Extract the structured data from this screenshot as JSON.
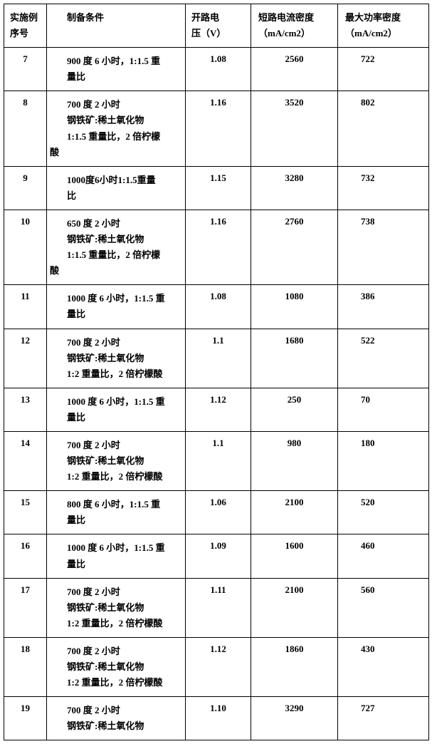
{
  "header": {
    "seq": "实施例序号",
    "cond": "制备条件",
    "volt_l1": "开路电",
    "volt_l2": "压（V）",
    "curr_l1": "短路电流密度",
    "curr_l2": "（mA/cm2）",
    "pow_l1": "最大功率密度",
    "pow_l2": "（mA/cm2）"
  },
  "rows": [
    {
      "seq": "7",
      "cond": [
        "900 度 6 小时，1:1.5 重",
        "量比"
      ],
      "volt": "1.08",
      "curr": "2560",
      "pow": "722"
    },
    {
      "seq": "8",
      "cond": [
        "700 度 2 小时",
        "钢铁矿:稀土氧化物",
        "1:1.5 重量比，2 倍柠檬",
        "酸"
      ],
      "condFlushLast": true,
      "volt": "1.16",
      "curr": "3520",
      "pow": "802"
    },
    {
      "seq": "9",
      "cond": [
        "1000度6小时1:1.5重量",
        "比"
      ],
      "volt": "1.15",
      "curr": "3280",
      "pow": "732"
    },
    {
      "seq": "10",
      "cond": [
        "650 度 2 小时",
        "钢铁矿:稀土氧化物",
        "1:1.5 重量比，2 倍柠檬",
        "酸"
      ],
      "condFlushLast": true,
      "volt": "1.16",
      "curr": "2760",
      "pow": "738"
    },
    {
      "seq": "11",
      "cond": [
        "1000 度 6 小时，1:1.5 重",
        "量比"
      ],
      "volt": "1.08",
      "curr": "1080",
      "pow": "386"
    },
    {
      "seq": "12",
      "cond": [
        "700 度 2 小时",
        "钢铁矿:稀土氧化物",
        "1:2 重量比，2 倍柠檬酸"
      ],
      "volt": "1.1",
      "curr": "1680",
      "pow": "522"
    },
    {
      "seq": "13",
      "cond": [
        "1000 度 6 小时，1:1.5 重",
        "量比"
      ],
      "volt": "1.12",
      "curr": "250",
      "pow": "70"
    },
    {
      "seq": "14",
      "cond": [
        "700 度 2 小时",
        "钢铁矿:稀土氧化物",
        "1:2 重量比，2 倍柠檬酸"
      ],
      "volt": "1.1",
      "curr": "980",
      "pow": "180"
    },
    {
      "seq": "15",
      "cond": [
        "800 度 6 小时，1:1.5 重",
        "量比"
      ],
      "volt": "1.06",
      "curr": "2100",
      "pow": "520"
    },
    {
      "seq": "16",
      "cond": [
        "1000 度 6 小时，1:1.5 重",
        "量比"
      ],
      "volt": "1.09",
      "curr": "1600",
      "pow": "460"
    },
    {
      "seq": "17",
      "cond": [
        "700 度 2 小时",
        "钢铁矿:稀土氧化物",
        "1:2 重量比，2 倍柠檬酸"
      ],
      "volt": "1.11",
      "curr": "2100",
      "pow": "560"
    },
    {
      "seq": "18",
      "cond": [
        "700 度 2 小时",
        "钢铁矿:稀土氧化物",
        "1:2 重量比，2 倍柠檬酸"
      ],
      "volt": "1.12",
      "curr": "1860",
      "pow": "430"
    },
    {
      "seq": "19",
      "cond": [
        "700 度 2 小时",
        "钢铁矿:稀土氧化物"
      ],
      "volt": "1.10",
      "curr": "3290",
      "pow": "727"
    }
  ]
}
